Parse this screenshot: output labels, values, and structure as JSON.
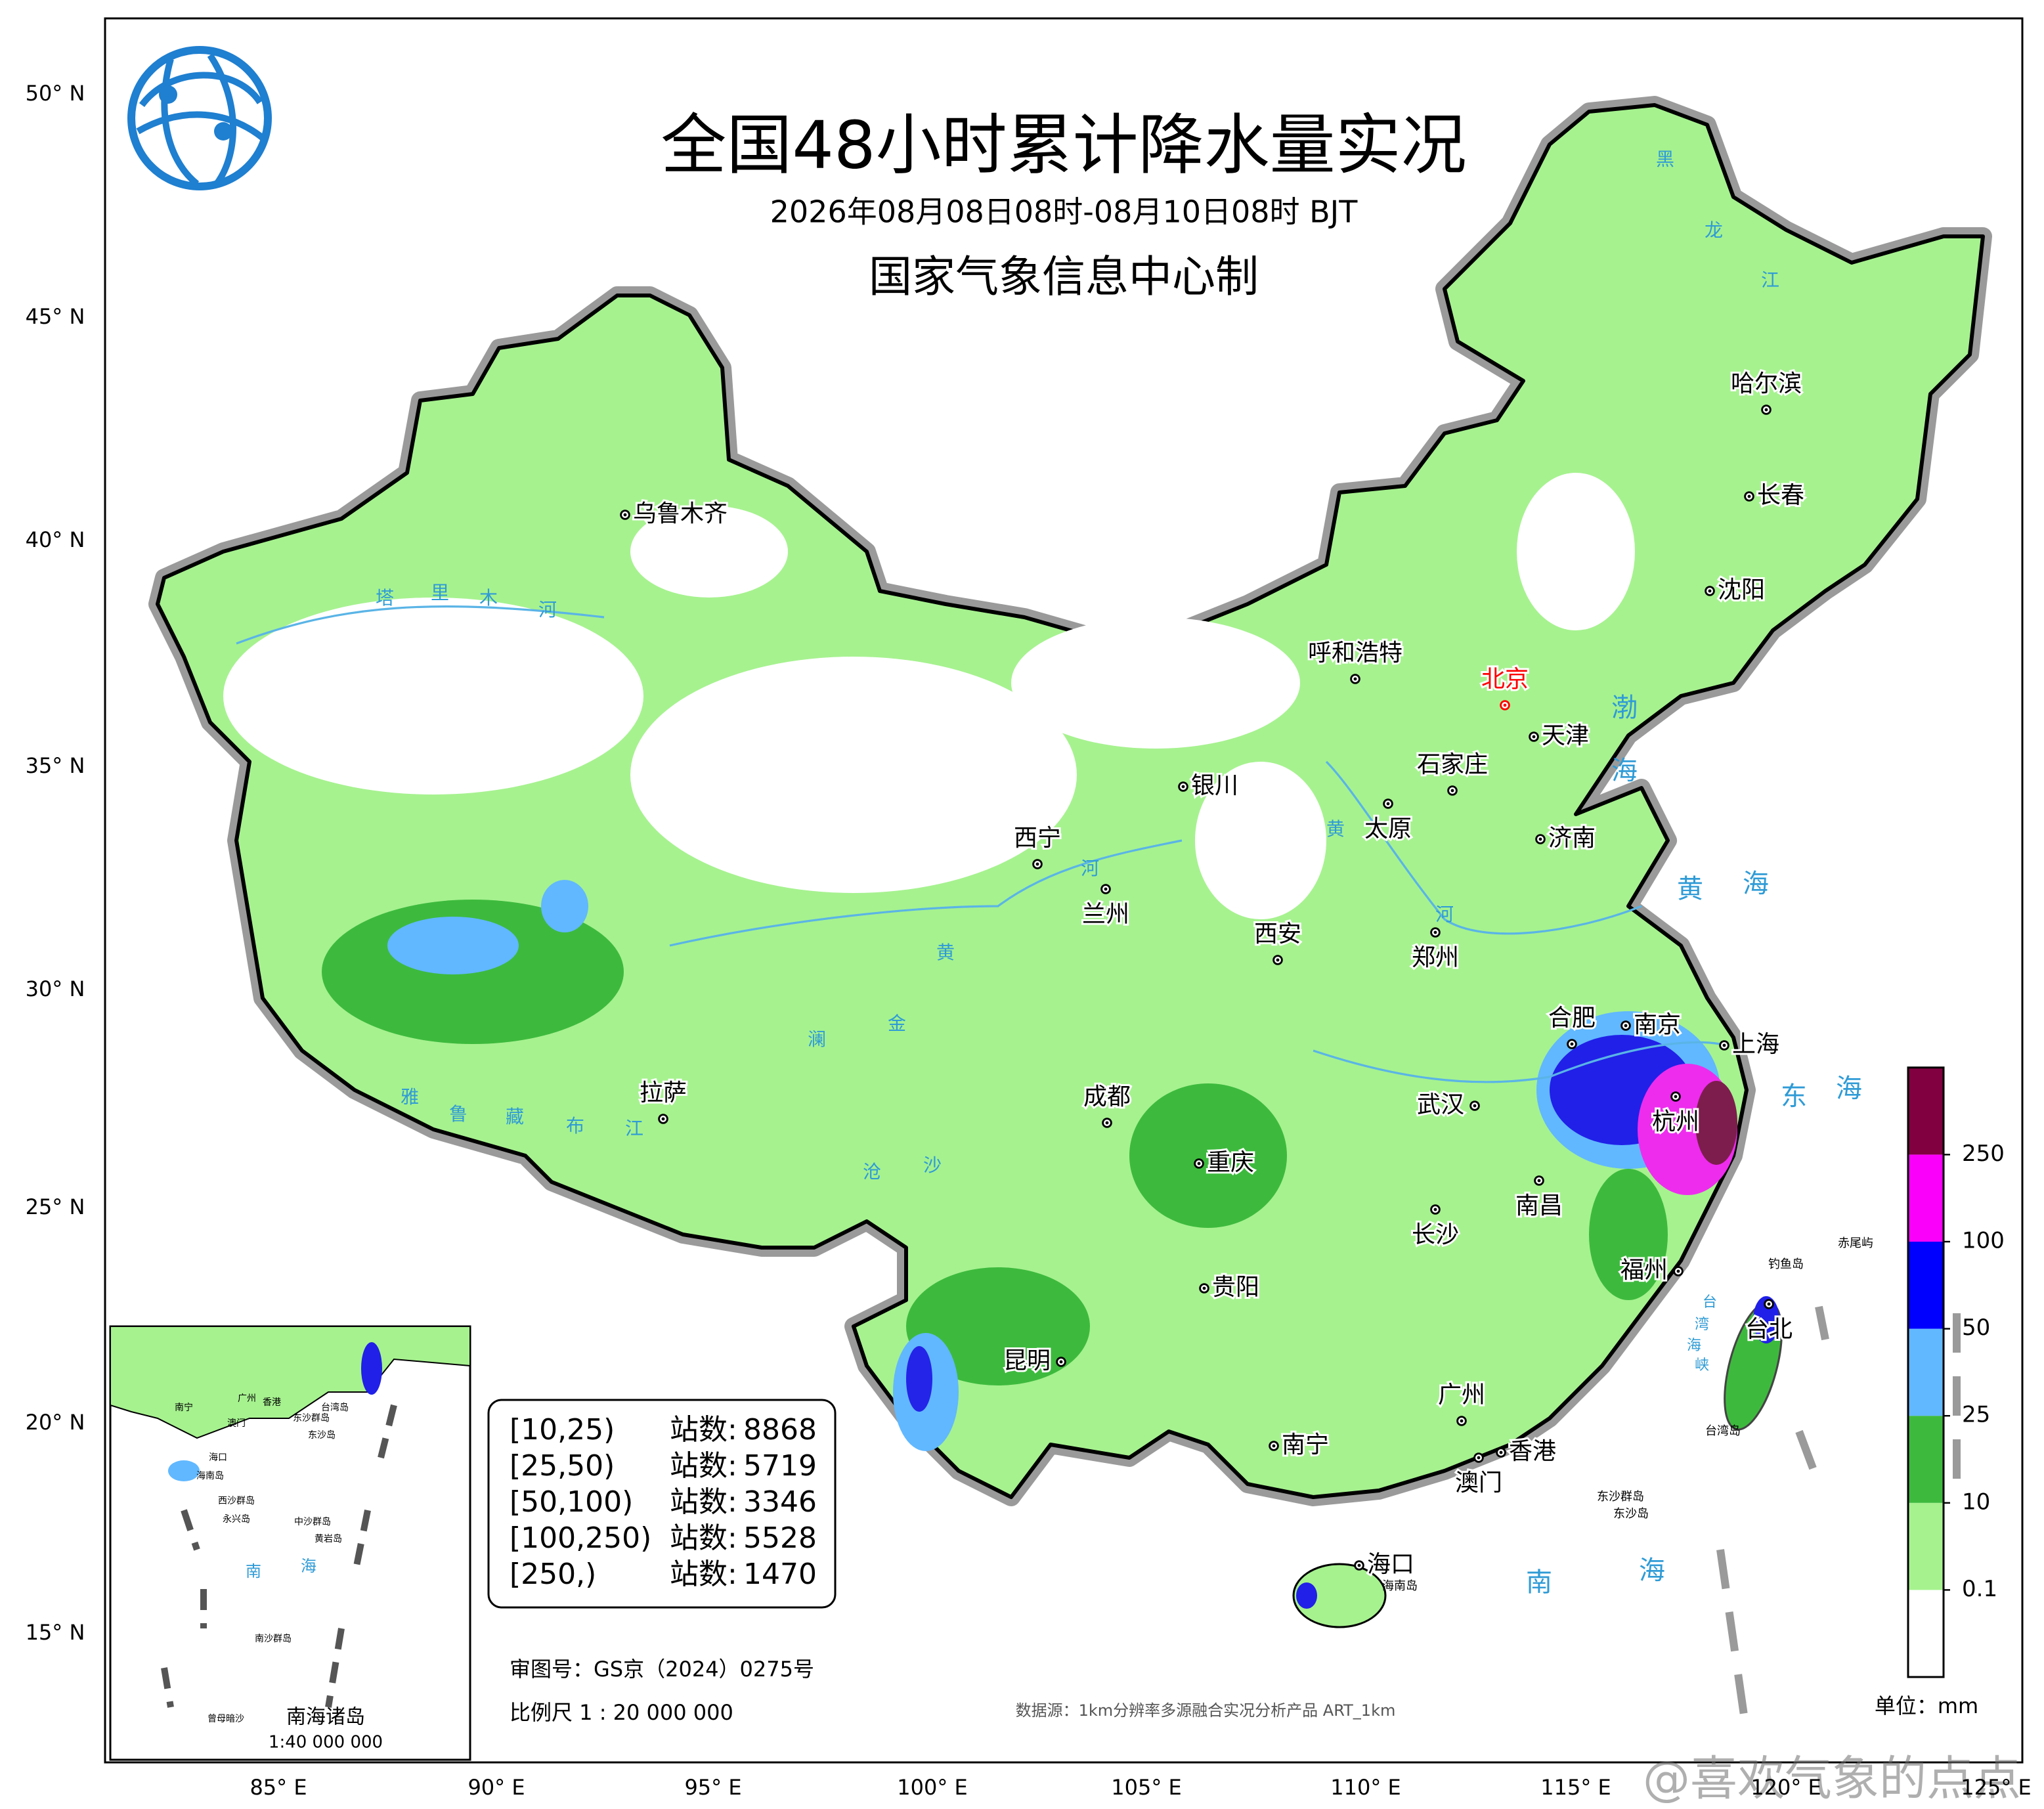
{
  "header": {
    "title": "全国48小时累计降水量实况",
    "subtitle": "2026年08月08日08时-08月10日08时 BJT",
    "producer": "国家气象信息中心制"
  },
  "latitude_labels": [
    "50° N",
    "45° N",
    "40° N",
    "35° N",
    "30° N",
    "25° N",
    "20° N",
    "15° N"
  ],
  "longitude_labels": [
    "85° E",
    "90° E",
    "95° E",
    "100° E",
    "105° E",
    "110° E",
    "115° E",
    "120° E",
    "125° E"
  ],
  "cities": [
    "乌鲁木齐",
    "呼和浩特",
    "北京",
    "天津",
    "石家庄",
    "太原",
    "济南",
    "银川",
    "西宁",
    "兰州",
    "西安",
    "郑州",
    "合肥",
    "南京",
    "上海",
    "杭州",
    "武汉",
    "南昌",
    "长沙",
    "福州",
    "台北",
    "拉萨",
    "成都",
    "重庆",
    "贵阳",
    "昆明",
    "南宁",
    "广州",
    "香港",
    "澳门",
    "海口",
    "哈尔滨",
    "长春",
    "沈阳"
  ],
  "seas": [
    [
      "渤",
      "海"
    ],
    [
      "黄",
      "海"
    ],
    [
      "东",
      "海"
    ],
    [
      "南",
      "海"
    ],
    [
      "台",
      "湾",
      "海",
      "峡"
    ]
  ],
  "rivers": [
    [
      "塔",
      "里",
      "木",
      "河"
    ],
    [
      "雅",
      "鲁",
      "藏",
      "布",
      "江"
    ],
    [
      "黑",
      "龙",
      "江"
    ],
    [
      "黄",
      "河"
    ],
    [
      "黄",
      "河"
    ],
    [
      "澜",
      "沧"
    ],
    [
      "金",
      "沙"
    ]
  ],
  "places": [
    "钓鱼岛",
    "赤尾屿",
    "台湾岛",
    "东沙群岛",
    "东沙岛",
    "海南岛"
  ],
  "stations": {
    "rows": [
      {
        "range": "[10,25)",
        "label": "站数:",
        "count": 8868
      },
      {
        "range": "[25,50)",
        "label": "站数:",
        "count": 5719
      },
      {
        "range": "[50,100)",
        "label": "站数:",
        "count": 3346
      },
      {
        "range": "[100,250)",
        "label": "站数:",
        "count": 5528
      },
      {
        "range": "[250,)",
        "label": "站数:",
        "count": 1470
      }
    ]
  },
  "review_number": "审图号：GS京（2024）0275号",
  "scale": "比例尺 1 : 20 000 000",
  "data_source": "数据源：1km分辨率多源融合实况分析产品 ART_1km",
  "legend": {
    "ticks": [
      0.1,
      10,
      25,
      50,
      100,
      250
    ],
    "colors": [
      "#ffffff",
      "#a6f28f",
      "#3dba3d",
      "#61b8ff",
      "#0000fe",
      "#fa00fa",
      "#800040"
    ],
    "unit": "单位：mm"
  },
  "inset": {
    "title": "南海诸岛",
    "scale": "1:40 000 000",
    "sea": [
      "南",
      "海"
    ],
    "labels": [
      "南宁",
      "广州",
      "香港",
      "澳门",
      "海口",
      "海南岛",
      "台湾岛",
      "东沙群岛",
      "东沙岛",
      "西沙群岛",
      "永兴岛",
      "中沙群岛",
      "黄岩岛",
      "南沙群岛",
      "曾母暗沙"
    ]
  },
  "watermark": "@喜欢气象的点点"
}
